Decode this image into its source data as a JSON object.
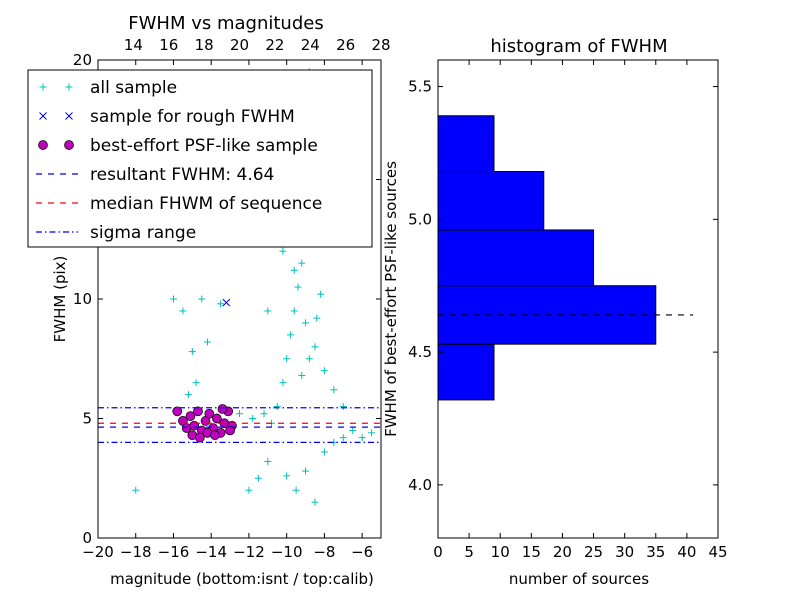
{
  "figure": {
    "background": "#ffffff"
  },
  "chart_data": [
    {
      "type": "scatter",
      "title": "FWHM vs magnitudes",
      "xlabel": "magnitude (bottom:isnt / top:calib)",
      "ylabel": "FWHM (pix)",
      "xlim": [
        -20,
        -5
      ],
      "ylim": [
        0,
        20
      ],
      "top_xlim": [
        12,
        28
      ],
      "x_ticks": [
        -20,
        -18,
        -16,
        -14,
        -12,
        -10,
        -8,
        -6
      ],
      "x_tick_labels": [
        "−20",
        "−18",
        "−16",
        "−14",
        "−12",
        "−10",
        "−8",
        "−6"
      ],
      "top_x_ticks": [
        14,
        16,
        18,
        20,
        22,
        24,
        26,
        28
      ],
      "top_x_tick_labels": [
        "14",
        "16",
        "18",
        "20",
        "22",
        "24",
        "26",
        "28"
      ],
      "y_ticks": [
        0,
        5,
        10,
        15,
        20
      ],
      "y_tick_labels": [
        "0",
        "5",
        "10",
        "15",
        "20"
      ],
      "grid": false,
      "legend_position": "upper-left",
      "legend": [
        {
          "label": "all sample",
          "marker": "plus",
          "color": "#00bfbf"
        },
        {
          "label": "sample for rough FWHM",
          "marker": "x",
          "color": "#0000ff"
        },
        {
          "label": "best-effort PSF-like sample",
          "marker": "circle",
          "color": "#bf00bf"
        },
        {
          "label": "resultant FWHM: 4.64",
          "linestyle": "dashed",
          "color": "#0000ff"
        },
        {
          "label": "median FHWM of sequence",
          "linestyle": "dashed",
          "color": "#ff0000"
        },
        {
          "label": "sigma range",
          "linestyle": "dashdot",
          "color": "#0000ff"
        }
      ],
      "hlines": [
        {
          "name": "resultant-fwhm",
          "y": 4.64,
          "color": "#0000ff",
          "linestyle": "dashed"
        },
        {
          "name": "median-fwhm",
          "y": 4.8,
          "color": "#ff0000",
          "linestyle": "dashed"
        },
        {
          "name": "sigma-upper",
          "y": 5.45,
          "color": "#0000ff",
          "linestyle": "dashdot"
        },
        {
          "name": "sigma-lower",
          "y": 4.0,
          "color": "#0000ff",
          "linestyle": "dashdot"
        }
      ],
      "series": [
        {
          "name": "all sample",
          "marker": "plus",
          "color": "#00bfbf",
          "points": [
            [
              -18.0,
              2.0
            ],
            [
              -16.0,
              10.0
            ],
            [
              -15.5,
              9.5
            ],
            [
              -14.5,
              10.0
            ],
            [
              -15.0,
              7.8
            ],
            [
              -14.8,
              6.5
            ],
            [
              -15.2,
              6.0
            ],
            [
              -14.2,
              8.2
            ],
            [
              -13.5,
              9.8
            ],
            [
              -12.0,
              2.0
            ],
            [
              -11.5,
              2.5
            ],
            [
              -11.0,
              3.2
            ],
            [
              -10.0,
              2.6
            ],
            [
              -9.5,
              2.0
            ],
            [
              -9.0,
              2.8
            ],
            [
              -8.5,
              1.5
            ],
            [
              -8.0,
              3.6
            ],
            [
              -7.5,
              4.0
            ],
            [
              -7.0,
              4.2
            ],
            [
              -6.5,
              4.5
            ],
            [
              -6.0,
              4.2
            ],
            [
              -5.5,
              4.4
            ],
            [
              -12.5,
              5.2
            ],
            [
              -11.8,
              5.0
            ],
            [
              -11.2,
              5.2
            ],
            [
              -10.8,
              4.8
            ],
            [
              -10.5,
              5.5
            ],
            [
              -10.2,
              6.5
            ],
            [
              -10.0,
              7.5
            ],
            [
              -9.8,
              8.5
            ],
            [
              -9.6,
              9.5
            ],
            [
              -9.4,
              10.5
            ],
            [
              -9.2,
              11.5
            ],
            [
              -9.0,
              12.5
            ],
            [
              -8.8,
              13.5
            ],
            [
              -8.6,
              14.5
            ],
            [
              -8.4,
              15.5
            ],
            [
              -8.2,
              16.5
            ],
            [
              -8.0,
              17.5
            ],
            [
              -8.8,
              19.5
            ],
            [
              -9.5,
              14.0
            ],
            [
              -10.2,
              12.0
            ],
            [
              -9.0,
              9.0
            ],
            [
              -8.5,
              8.0
            ],
            [
              -8.0,
              7.0
            ],
            [
              -7.5,
              6.2
            ],
            [
              -7.0,
              5.5
            ],
            [
              -9.2,
              6.8
            ],
            [
              -8.8,
              7.5
            ],
            [
              -8.4,
              9.2
            ],
            [
              -8.2,
              10.2
            ],
            [
              -9.6,
              11.2
            ],
            [
              -9.8,
              13.0
            ],
            [
              -10.4,
              15.0
            ],
            [
              -10.6,
              16.5
            ],
            [
              -13.0,
              14.0
            ],
            [
              -12.0,
              12.5
            ],
            [
              -11.0,
              9.5
            ]
          ]
        },
        {
          "name": "sample for rough FWHM",
          "marker": "x",
          "color": "#0000ff",
          "points": [
            [
              -13.2,
              9.85
            ]
          ]
        },
        {
          "name": "best-effort PSF-like sample",
          "marker": "circle",
          "color": "#bf00bf",
          "points": [
            [
              -15.8,
              5.3
            ],
            [
              -15.5,
              4.9
            ],
            [
              -15.3,
              4.6
            ],
            [
              -15.1,
              5.1
            ],
            [
              -14.9,
              4.7
            ],
            [
              -14.7,
              5.3
            ],
            [
              -14.5,
              4.5
            ],
            [
              -14.3,
              4.9
            ],
            [
              -14.1,
              5.2
            ],
            [
              -13.9,
              4.6
            ],
            [
              -13.7,
              5.0
            ],
            [
              -13.5,
              4.4
            ],
            [
              -13.3,
              4.8
            ],
            [
              -13.1,
              5.3
            ],
            [
              -12.9,
              4.7
            ],
            [
              -15.0,
              4.3
            ],
            [
              -14.6,
              4.2
            ],
            [
              -14.2,
              4.4
            ],
            [
              -13.8,
              4.3
            ],
            [
              -13.4,
              5.4
            ],
            [
              -13.0,
              4.5
            ]
          ]
        }
      ]
    },
    {
      "type": "bar",
      "orientation": "horizontal",
      "title": "histogram of FWHM",
      "xlabel": "number of sources",
      "ylabel": "FWHM of best-effort PSF-like sources",
      "xlim": [
        0,
        45
      ],
      "ylim": [
        3.8,
        5.6
      ],
      "x_ticks": [
        0,
        5,
        10,
        15,
        20,
        25,
        30,
        35,
        40,
        45
      ],
      "x_tick_labels": [
        "0",
        "5",
        "10",
        "15",
        "20",
        "25",
        "30",
        "35",
        "40",
        "45"
      ],
      "y_ticks": [
        4.0,
        4.5,
        5.0,
        5.5
      ],
      "y_tick_labels": [
        "4.0",
        "4.5",
        "5.0",
        "5.5"
      ],
      "grid": false,
      "bar_color": "#0000ff",
      "bins": [
        {
          "low": 4.32,
          "high": 4.53,
          "count": 9
        },
        {
          "low": 4.53,
          "high": 4.75,
          "count": 35
        },
        {
          "low": 4.75,
          "high": 4.96,
          "count": 25
        },
        {
          "low": 4.96,
          "high": 5.18,
          "count": 17
        },
        {
          "low": 5.18,
          "high": 5.39,
          "count": 9
        }
      ],
      "reference_line": {
        "y": 4.64,
        "color": "#000000",
        "linestyle": "dashed",
        "x_extent": [
          0,
          41
        ]
      }
    }
  ]
}
